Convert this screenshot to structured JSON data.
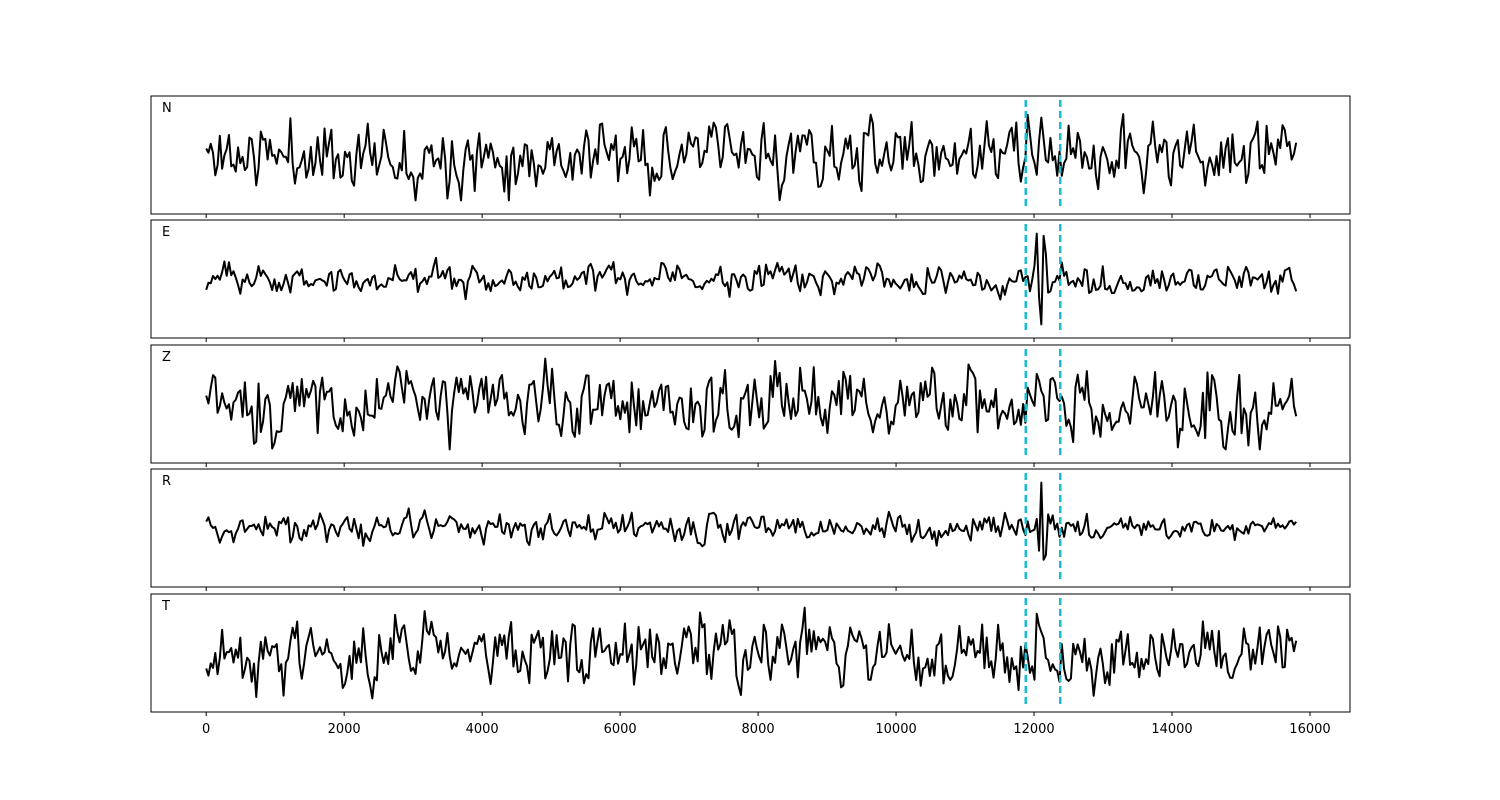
{
  "chart_data": {
    "type": "line",
    "x_range": [
      0,
      15800
    ],
    "xlim": [
      -800,
      16580
    ],
    "x_ticks": [
      0,
      2000,
      4000,
      6000,
      8000,
      10000,
      12000,
      14000,
      16000
    ],
    "x_tick_labels": [
      "0",
      "2000",
      "4000",
      "6000",
      "8000",
      "10000",
      "12000",
      "14000",
      "16000"
    ],
    "markers": [
      11880,
      12380
    ],
    "colors": {
      "trace": "#000000",
      "marker": "#17becf"
    },
    "panels": [
      {
        "label": "N",
        "points": 480,
        "pattern": "noise-high",
        "ylim": [
          -1.3,
          1.3
        ]
      },
      {
        "label": "E",
        "points": 480,
        "pattern": "noise-low-event",
        "ylim": [
          -1.3,
          1.3
        ]
      },
      {
        "label": "Z",
        "points": 480,
        "pattern": "noise-high-dense",
        "ylim": [
          -1.3,
          1.3
        ]
      },
      {
        "label": "R",
        "points": 480,
        "pattern": "noise-low-spike",
        "ylim": [
          -1.3,
          1.3
        ]
      },
      {
        "label": "T",
        "points": 480,
        "pattern": "noise-high",
        "ylim": [
          -1.3,
          1.3
        ]
      }
    ]
  }
}
